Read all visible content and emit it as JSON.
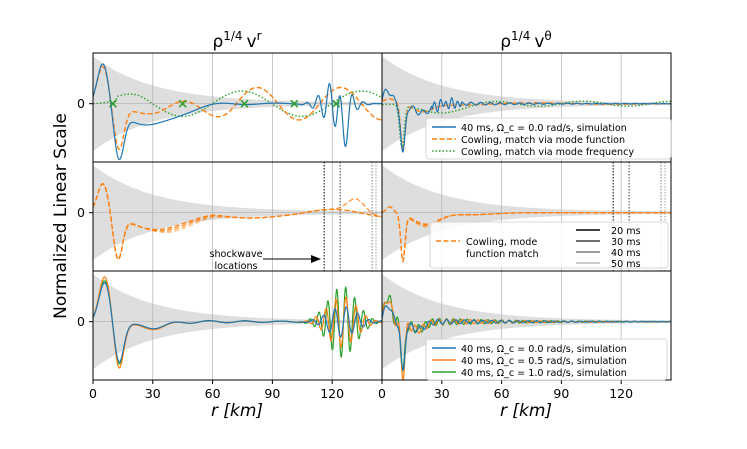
{
  "chart_data": {
    "type": "line",
    "ylabel": "Normalized Linear Scale",
    "xlabel_left": "r [km]",
    "xlabel_right": "r [km]",
    "columns": [
      {
        "title_base": "ρ",
        "title_exp": "1/4",
        "title_var": "v",
        "title_var_exp": "r"
      },
      {
        "title_base": "ρ",
        "title_exp": "1/4",
        "title_var": "v",
        "title_var_exp": "θ"
      }
    ],
    "xlim": [
      0,
      145
    ],
    "x_ticks": [
      0,
      30,
      60,
      90,
      120
    ],
    "x_tick_labels_left": [
      "0",
      "30",
      "60",
      "90",
      "120"
    ],
    "x_tick_labels_right": [
      "0",
      "30",
      "60",
      "90",
      "120"
    ],
    "ylim": [
      -1.15,
      1.0
    ],
    "y_tick_label": "0",
    "colors": {
      "blue": "#1f77b4",
      "orange": "#ff7f0e",
      "green": "#2ca02c",
      "envelope": "#d3d3d3",
      "grid": "#b0b0b0"
    },
    "shockwave_locations_km": [
      {
        "time": "20 ms",
        "r": 116
      },
      {
        "time": "30 ms",
        "r": 124
      },
      {
        "time": "40 ms",
        "r": 140
      },
      {
        "time": "50 ms",
        "r": 142
      }
    ],
    "mode_frequency_nodes_km": [
      10,
      45,
      76,
      101,
      122
    ],
    "annotation": {
      "line1": "shockwave",
      "line2": "locations"
    },
    "legends": {
      "top": [
        {
          "label": "40 ms, Ω_c = 0.0 rad/s, simulation",
          "style": "solid",
          "color": "blue"
        },
        {
          "label": "Cowling, match via mode function",
          "style": "dashed",
          "color": "orange"
        },
        {
          "label": "Cowling, match via mode frequency",
          "style": "dotted",
          "color": "green"
        }
      ],
      "middle_times": [
        {
          "label": "20 ms",
          "shade": "#000000"
        },
        {
          "label": "30 ms",
          "shade": "#404040"
        },
        {
          "label": "40 ms",
          "shade": "#7f7f7f"
        },
        {
          "label": "50 ms",
          "shade": "#b8b8b8"
        }
      ],
      "middle_cowling": {
        "line1": "Cowling, mode",
        "line2": "function match"
      },
      "bottom": [
        {
          "label": "40 ms, Ω_c = 0.0 rad/s, simulation",
          "color": "blue"
        },
        {
          "label": "40 ms, Ω_c = 0.5 rad/s, simulation",
          "color": "orange"
        },
        {
          "label": "40 ms, Ω_c = 1.0 rad/s, simulation",
          "color": "green"
        }
      ]
    }
  }
}
